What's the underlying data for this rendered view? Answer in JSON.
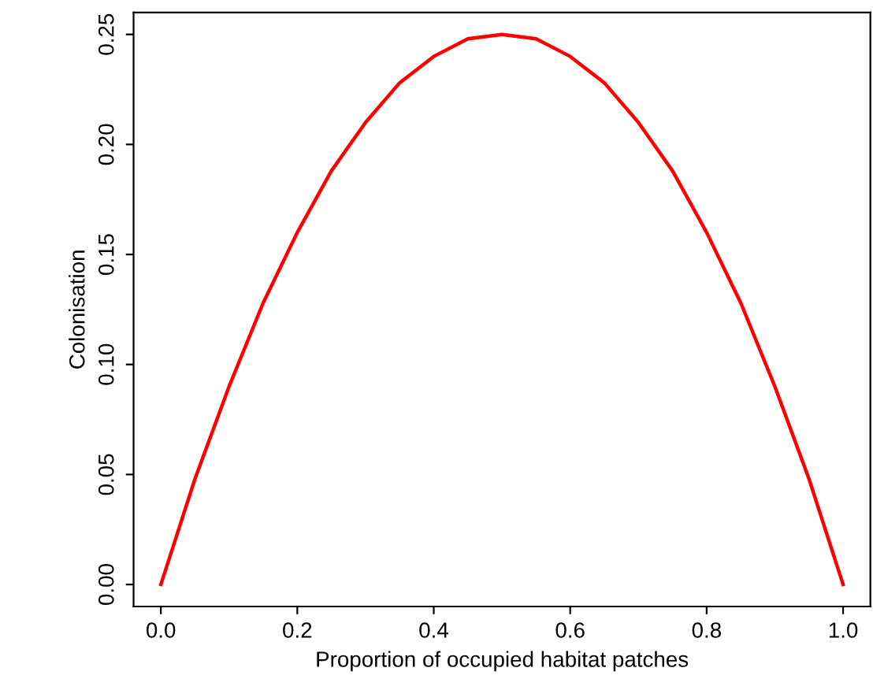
{
  "chart_data": {
    "type": "line",
    "xlabel": "Proportion of occupied habitat patches",
    "ylabel": "Colonisation",
    "x": [
      0,
      0.05,
      0.1,
      0.15,
      0.2,
      0.25,
      0.3,
      0.35,
      0.4,
      0.45,
      0.5,
      0.55,
      0.6,
      0.65,
      0.7,
      0.75,
      0.8,
      0.85,
      0.9,
      0.95,
      1.0
    ],
    "series": [
      {
        "color": "#ff0000",
        "values": [
          0,
          0.048,
          0.09,
          0.128,
          0.16,
          0.188,
          0.21,
          0.228,
          0.24,
          0.248,
          0.25,
          0.248,
          0.24,
          0.228,
          0.21,
          0.188,
          0.16,
          0.128,
          0.09,
          0.048,
          0
        ]
      }
    ],
    "xlim": [
      -0.04,
      1.04
    ],
    "ylim": [
      -0.01,
      0.26
    ],
    "xticks": [
      {
        "value": 0,
        "label": "0.0"
      },
      {
        "value": 0.2,
        "label": "0.2"
      },
      {
        "value": 0.4,
        "label": "0.4"
      },
      {
        "value": 0.6,
        "label": "0.6"
      },
      {
        "value": 0.8,
        "label": "0.8"
      },
      {
        "value": 1.0,
        "label": "1.0"
      }
    ],
    "yticks": [
      {
        "value": 0,
        "label": "0.00"
      },
      {
        "value": 0.05,
        "label": "0.05"
      },
      {
        "value": 0.1,
        "label": "0.10"
      },
      {
        "value": 0.15,
        "label": "0.15"
      },
      {
        "value": 0.2,
        "label": "0.20"
      },
      {
        "value": 0.25,
        "label": "0.25"
      }
    ],
    "grid": false,
    "legend": false,
    "marker": "none",
    "line_style": "solid"
  }
}
